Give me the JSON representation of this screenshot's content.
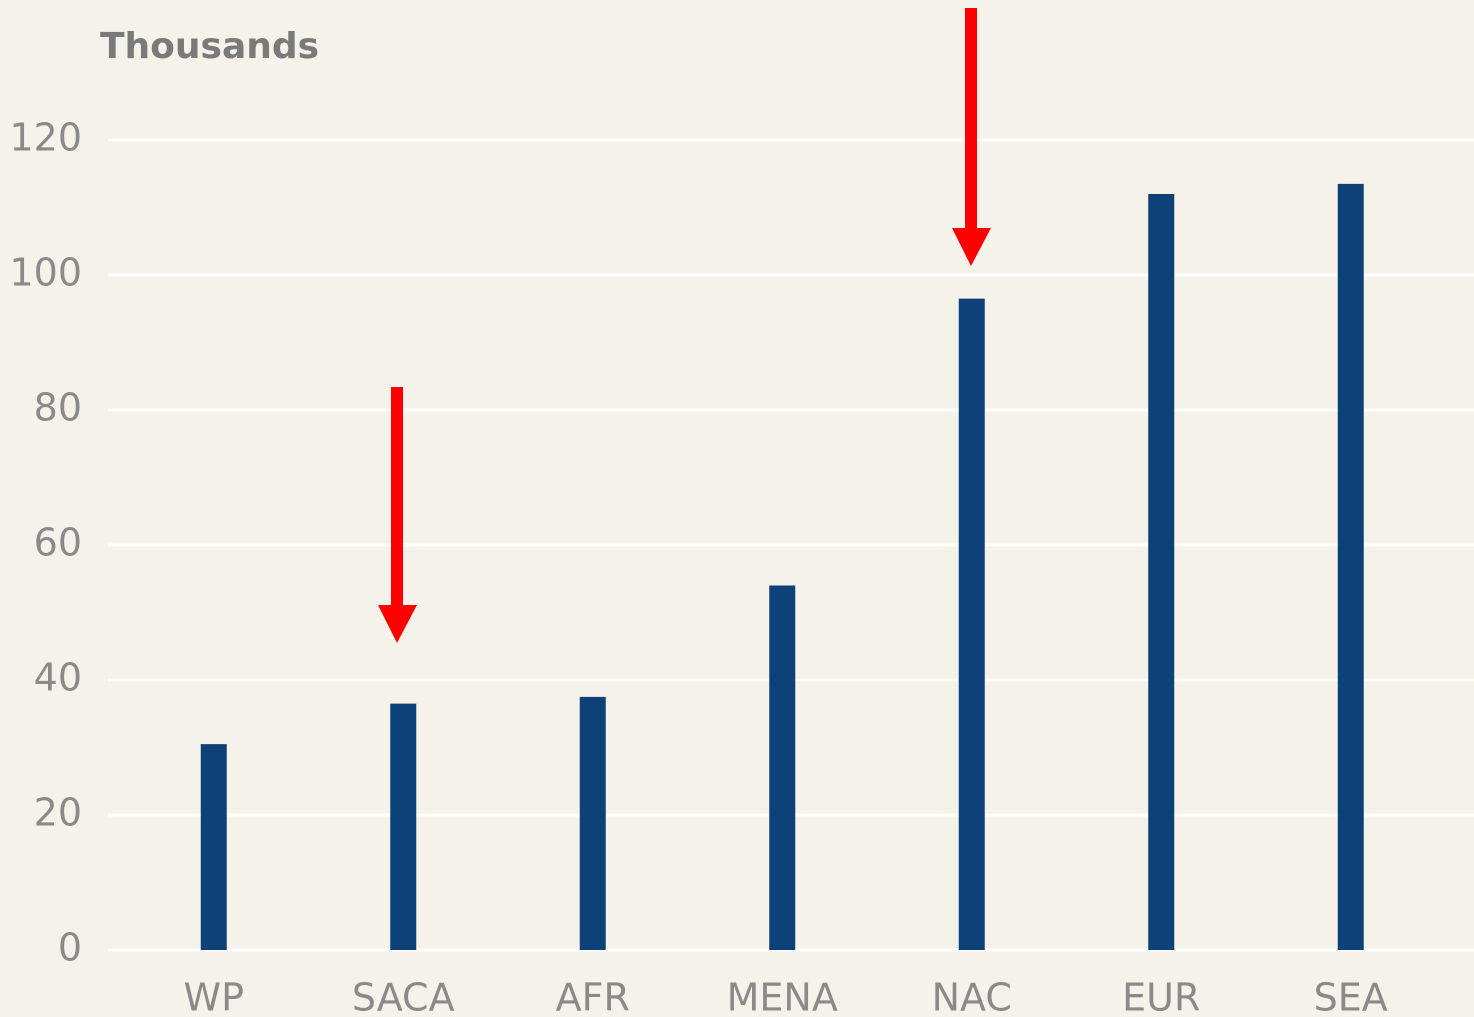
{
  "chart_data": {
    "type": "bar",
    "y_label": "Thousands",
    "categories": [
      "WP",
      "SACA",
      "AFR",
      "MENA",
      "NAC",
      "EUR",
      "SEA"
    ],
    "values": [
      30.5,
      36.5,
      37.5,
      54,
      96.5,
      112,
      113.5
    ],
    "color": "#0d4177",
    "ylim": [
      0,
      120
    ],
    "yticks": [
      0,
      20,
      40,
      60,
      80,
      100,
      120
    ],
    "grid": true
  }
}
